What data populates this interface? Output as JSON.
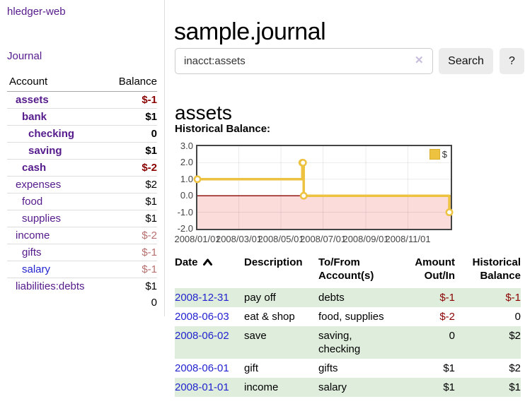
{
  "colors": {
    "link_purple": "#551a8b",
    "link_blue": "#2323d0",
    "negative_strong": "#8b0000",
    "negative_muted": "#b76e6e",
    "row_stripe_green": "#dfeedc",
    "button_bg": "#ececec"
  },
  "sidebar": {
    "app_title": "hledger-web",
    "journal_link": "Journal",
    "accounts": {
      "header_account": "Account",
      "header_balance": "Balance",
      "rows": [
        {
          "name": "assets",
          "balance": "$-1",
          "depth": 1,
          "bold": true,
          "balance_style": "negative-strong",
          "link": "purple"
        },
        {
          "name": "bank",
          "balance": "$1",
          "depth": 2,
          "bold": true,
          "balance_style": "normal",
          "link": "purple"
        },
        {
          "name": "checking",
          "balance": "0",
          "depth": 3,
          "bold": true,
          "balance_style": "normal",
          "link": "purple"
        },
        {
          "name": "saving",
          "balance": "$1",
          "depth": 3,
          "bold": true,
          "balance_style": "normal",
          "link": "purple"
        },
        {
          "name": "cash",
          "balance": "$-2",
          "depth": 2,
          "bold": true,
          "balance_style": "negative-strong",
          "link": "purple"
        },
        {
          "name": "expenses",
          "balance": "$2",
          "depth": 1,
          "bold": false,
          "balance_style": "normal",
          "link": "purple"
        },
        {
          "name": "food",
          "balance": "$1",
          "depth": 2,
          "bold": false,
          "balance_style": "normal",
          "link": "purple"
        },
        {
          "name": "supplies",
          "balance": "$1",
          "depth": 2,
          "bold": false,
          "balance_style": "normal",
          "link": "purple"
        },
        {
          "name": "income",
          "balance": "$-2",
          "depth": 1,
          "bold": false,
          "balance_style": "negative-muted",
          "link": "purple"
        },
        {
          "name": "gifts",
          "balance": "$-1",
          "depth": 2,
          "bold": false,
          "balance_style": "negative-muted",
          "link": "purple"
        },
        {
          "name": "salary",
          "balance": "$-1",
          "depth": 2,
          "bold": false,
          "balance_style": "negative-muted",
          "link": "blue"
        },
        {
          "name": "liabilities:debts",
          "balance": "$1",
          "depth": 1,
          "bold": false,
          "balance_style": "normal",
          "link": "purple"
        }
      ],
      "total": "0"
    }
  },
  "main": {
    "title": "sample.journal",
    "search": {
      "value": "inacct:assets",
      "clear_icon": "✕",
      "search_button": "Search",
      "help_button": "?"
    },
    "account_heading": "assets",
    "section_label": "Historical Balance:"
  },
  "chart_data": {
    "type": "line",
    "step": true,
    "title": "Historical Balance",
    "series": [
      {
        "name": "$",
        "color": "#edc240",
        "points": [
          [
            "2008-01-01",
            1
          ],
          [
            "2008-06-01",
            2
          ],
          [
            "2008-06-02",
            2
          ],
          [
            "2008-06-03",
            0
          ],
          [
            "2008-12-31",
            -1
          ]
        ]
      }
    ],
    "x_range": [
      "2008-01-01",
      "2008-12-31"
    ],
    "x_ticks": [
      [
        "2008-01-01",
        "2008/01/01"
      ],
      [
        "2008-03-01",
        "2008/03/01"
      ],
      [
        "2008-05-01",
        "2008/05/01"
      ],
      [
        "2008-07-01",
        "2008/07/01"
      ],
      [
        "2008-09-01",
        "2008/09/01"
      ],
      [
        "2008-11-01",
        "2008/11/01"
      ]
    ],
    "y_ticks": [
      [
        3,
        "3.0"
      ],
      [
        2,
        "2.0"
      ],
      [
        1,
        "1.0"
      ],
      [
        0,
        "0.0"
      ],
      [
        -1,
        "-1.0"
      ],
      [
        -2,
        "-2.0"
      ]
    ],
    "ylim": [
      -2,
      3
    ],
    "grid": true,
    "negative_fill": "#fcdbdb",
    "zero_line_color": "#8b0000",
    "legend": {
      "label": "$",
      "position": "top-right"
    }
  },
  "register": {
    "headers": {
      "date": "Date",
      "sort_icon": "chevron-up",
      "description": "Description",
      "tofrom": "To/From Account(s)",
      "amount": "Amount Out/In",
      "balance": "Historical Balance"
    },
    "rows": [
      {
        "date": "2008-12-31",
        "description": "pay off",
        "accounts_lines": [
          "debts"
        ],
        "amount": "$-1",
        "amount_neg": true,
        "balance": "$-1",
        "balance_neg": true,
        "stripe": true
      },
      {
        "date": "2008-06-03",
        "description": "eat & shop",
        "accounts_lines": [
          "food, supplies"
        ],
        "amount": "$-2",
        "amount_neg": true,
        "balance": "0",
        "balance_neg": false,
        "stripe": false
      },
      {
        "date": "2008-06-02",
        "description": "save",
        "accounts_lines": [
          "saving,",
          "checking"
        ],
        "amount": "0",
        "amount_neg": false,
        "balance": "$2",
        "balance_neg": false,
        "stripe": true
      },
      {
        "date": "2008-06-01",
        "description": "gift",
        "accounts_lines": [
          "gifts"
        ],
        "amount": "$1",
        "amount_neg": false,
        "balance": "$2",
        "balance_neg": false,
        "stripe": false
      },
      {
        "date": "2008-01-01",
        "description": "income",
        "accounts_lines": [
          "salary"
        ],
        "amount": "$1",
        "amount_neg": false,
        "balance": "$1",
        "balance_neg": false,
        "stripe": true
      }
    ]
  }
}
